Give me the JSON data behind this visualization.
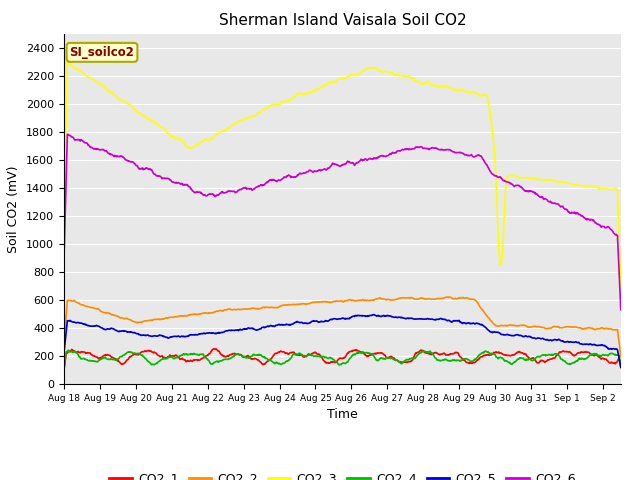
{
  "title": "Sherman Island Vaisala Soil CO2",
  "ylabel": "Soil CO2 (mV)",
  "xlabel": "Time",
  "annotation": "SI_soilco2",
  "ylim": [
    0,
    2500
  ],
  "yticks": [
    0,
    200,
    400,
    600,
    800,
    1000,
    1200,
    1400,
    1600,
    1800,
    2000,
    2200,
    2400
  ],
  "series_colors": {
    "CO2_1": "#ff0000",
    "CO2_2": "#ff8c00",
    "CO2_3": "#ffff00",
    "CO2_4": "#00bb00",
    "CO2_5": "#0000cc",
    "CO2_6": "#cc00cc"
  },
  "plot_bg": "#e8e8e8",
  "fig_bg": "#ffffff",
  "title_fontsize": 11,
  "axis_fontsize": 9,
  "tick_fontsize": 8,
  "legend_fontsize": 9
}
